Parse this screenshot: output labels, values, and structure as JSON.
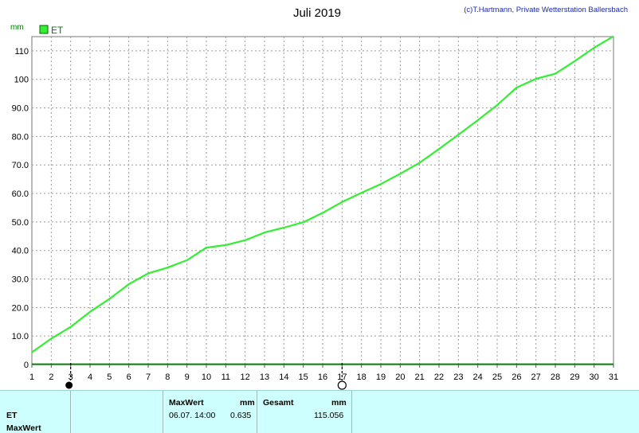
{
  "chart_data": {
    "type": "line",
    "title": "Juli 2019",
    "credit": "(c)T.Hartmann, Private Wetterstation Ballersbach",
    "ylabel": "mm",
    "ylim": [
      0,
      115
    ],
    "yticks": [
      0,
      10.0,
      20.0,
      30.0,
      40.0,
      50.0,
      60.0,
      70.0,
      80.0,
      90.0,
      100,
      110
    ],
    "ytick_labels": [
      "0",
      "10.0",
      "20.0",
      "30.0",
      "40.0",
      "50.0",
      "60.0",
      "70.0",
      "80.0",
      "90.0",
      "100",
      "110"
    ],
    "xlim": [
      1,
      31
    ],
    "x": [
      1,
      2,
      3,
      4,
      5,
      6,
      7,
      8,
      9,
      10,
      11,
      12,
      13,
      14,
      15,
      16,
      17,
      18,
      19,
      20,
      21,
      22,
      23,
      24,
      25,
      26,
      27,
      28,
      29,
      30,
      31
    ],
    "legend": {
      "position": "top-left",
      "entries": [
        "ET"
      ]
    },
    "grid": true,
    "series": [
      {
        "name": "ET",
        "color": "#33ee33",
        "values": [
          4.3,
          9.1,
          13.2,
          18.5,
          23.0,
          28.2,
          32.0,
          34.0,
          36.6,
          41.0,
          41.9,
          43.6,
          46.3,
          48.0,
          49.9,
          53.2,
          57.0,
          60.2,
          63.3,
          66.9,
          70.8,
          75.6,
          80.6,
          85.7,
          91.0,
          97.1,
          100.2,
          102.0,
          106.4,
          111.1,
          115.1
        ]
      },
      {
        "name": "",
        "color": "#008000",
        "values": [
          0.1,
          0.1,
          0.1,
          0.1,
          0.1,
          0.1,
          0.1,
          0.1,
          0.1,
          0.1,
          0.1,
          0.1,
          0.1,
          0.1,
          0.1,
          0.1,
          0.1,
          0.1,
          0.1,
          0.1,
          0.1,
          0.1,
          0.1,
          0.1,
          0.1,
          0.1,
          0.1,
          0.1,
          0.1,
          0.1,
          0.1
        ]
      }
    ],
    "markers": [
      {
        "day": 3,
        "symbol": "filled-circle"
      },
      {
        "day": 17,
        "symbol": "open-circle"
      }
    ]
  },
  "info": {
    "row_label_1": "ET",
    "row_label_2": "MaxWert",
    "maxwert_header": "MaxWert",
    "maxwert_unit": "mm",
    "maxwert_time": "06.07.  14:00",
    "maxwert_value": "0.635",
    "gesamt_header": "Gesamt",
    "gesamt_unit": "mm",
    "gesamt_value": "115.056"
  }
}
